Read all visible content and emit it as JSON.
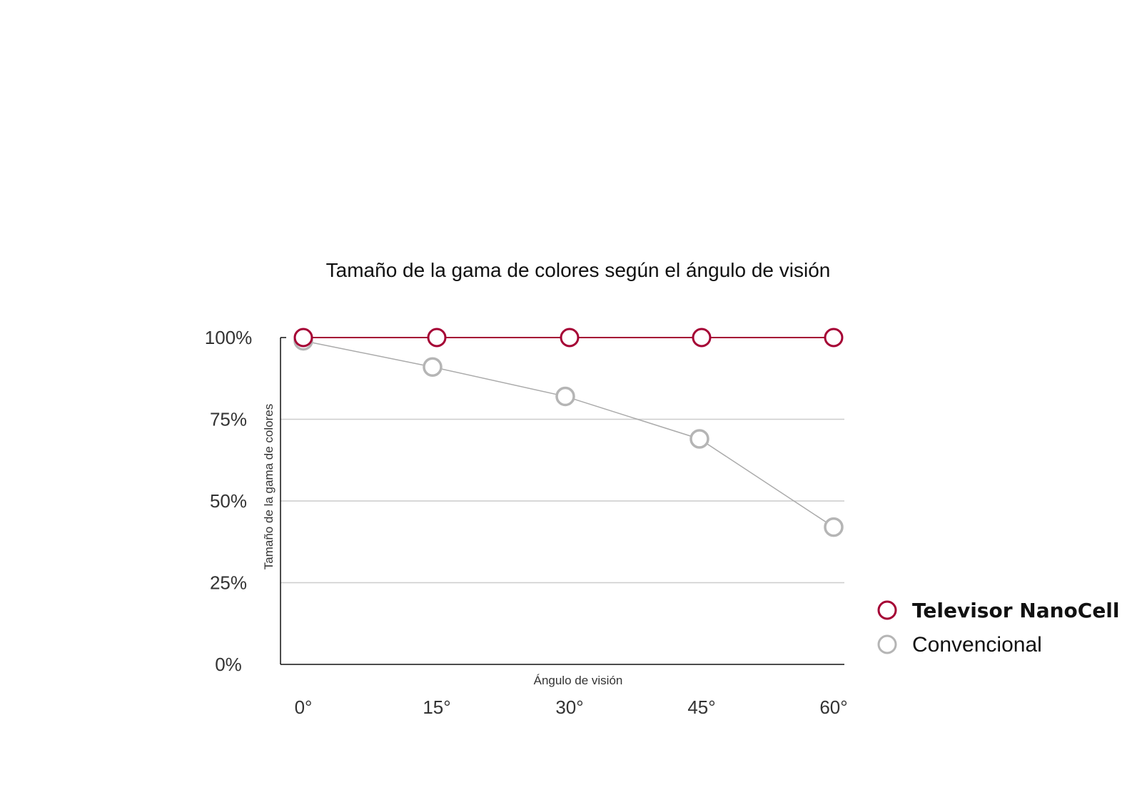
{
  "chart_data": {
    "type": "line",
    "title": "Tamaño de la gama de colores según el ángulo de visión",
    "xlabel": "Ángulo de visión",
    "ylabel": "Tamaño de la gama de colores",
    "categories": [
      "0°",
      "15°",
      "30°",
      "45°",
      "60°"
    ],
    "yticks": [
      "0%",
      "25%",
      "50%",
      "75%",
      "100%"
    ],
    "ylim": [
      0,
      100
    ],
    "grid": true,
    "legend_position": "right",
    "series": [
      {
        "name": "Televisor NanoCell",
        "values": [
          100,
          100,
          100,
          100,
          100
        ],
        "color": "#a50034"
      },
      {
        "name": "Convencional",
        "values": [
          99,
          91,
          82,
          69,
          42
        ],
        "color": "#b5b5b5"
      }
    ]
  }
}
